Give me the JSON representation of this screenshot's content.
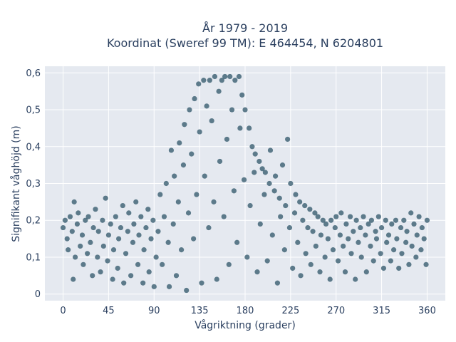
{
  "chart_data": {
    "type": "scatter",
    "title_lines": [
      "År 1979 - 2019",
      "Koordinat (Sweref 99 TM): E 464454, N 6204801"
    ],
    "xlabel": "Vågriktning (grader)",
    "ylabel": "Signifikant våghöjd (m)",
    "xlim": [
      -18,
      378
    ],
    "ylim": [
      -0.018,
      0.618
    ],
    "xticks": [
      0,
      45,
      90,
      135,
      180,
      225,
      270,
      315,
      360
    ],
    "xtick_labels": [
      "0",
      "45",
      "90",
      "135",
      "180",
      "225",
      "270",
      "315",
      "360"
    ],
    "yticks": [
      0,
      0.1,
      0.2,
      0.3,
      0.4,
      0.5,
      0.6
    ],
    "ytick_labels": [
      "0",
      "0,1",
      "0,2",
      "0,3",
      "0,4",
      "0,5",
      "0,6"
    ],
    "grid": true,
    "marker_color": "#2e5468",
    "background_color": "#e5e9f0",
    "series": [
      {
        "points": [
          [
            0,
            0.18
          ],
          [
            2,
            0.2
          ],
          [
            4,
            0.15
          ],
          [
            5,
            0.12
          ],
          [
            7,
            0.21
          ],
          [
            9,
            0.17
          ],
          [
            10,
            0.04
          ],
          [
            11,
            0.25
          ],
          [
            12,
            0.1
          ],
          [
            14,
            0.19
          ],
          [
            15,
            0.22
          ],
          [
            17,
            0.13
          ],
          [
            19,
            0.16
          ],
          [
            20,
            0.08
          ],
          [
            22,
            0.2
          ],
          [
            24,
            0.11
          ],
          [
            25,
            0.21
          ],
          [
            27,
            0.14
          ],
          [
            29,
            0.05
          ],
          [
            30,
            0.18
          ],
          [
            32,
            0.23
          ],
          [
            34,
            0.1
          ],
          [
            35,
            0.17
          ],
          [
            37,
            0.06
          ],
          [
            39,
            0.2
          ],
          [
            40,
            0.13
          ],
          [
            42,
            0.26
          ],
          [
            44,
            0.09
          ],
          [
            45,
            0.16
          ],
          [
            47,
            0.19
          ],
          [
            49,
            0.04
          ],
          [
            50,
            0.12
          ],
          [
            52,
            0.21
          ],
          [
            54,
            0.07
          ],
          [
            55,
            0.15
          ],
          [
            57,
            0.18
          ],
          [
            59,
            0.24
          ],
          [
            60,
            0.03
          ],
          [
            62,
            0.11
          ],
          [
            64,
            0.17
          ],
          [
            65,
            0.22
          ],
          [
            67,
            0.05
          ],
          [
            69,
            0.14
          ],
          [
            70,
            0.19
          ],
          [
            72,
            0.25
          ],
          [
            74,
            0.08
          ],
          [
            75,
            0.16
          ],
          [
            77,
            0.21
          ],
          [
            79,
            0.03
          ],
          [
            80,
            0.12
          ],
          [
            82,
            0.18
          ],
          [
            84,
            0.23
          ],
          [
            85,
            0.06
          ],
          [
            87,
            0.15
          ],
          [
            89,
            0.2
          ],
          [
            90,
            0.02
          ],
          [
            92,
            0.1
          ],
          [
            94,
            0.17
          ],
          [
            96,
            0.27
          ],
          [
            98,
            0.08
          ],
          [
            100,
            0.21
          ],
          [
            102,
            0.3
          ],
          [
            104,
            0.14
          ],
          [
            105,
            0.02
          ],
          [
            107,
            0.39
          ],
          [
            109,
            0.19
          ],
          [
            110,
            0.32
          ],
          [
            112,
            0.05
          ],
          [
            114,
            0.25
          ],
          [
            115,
            0.41
          ],
          [
            117,
            0.12
          ],
          [
            119,
            0.35
          ],
          [
            120,
            0.46
          ],
          [
            122,
            0.01
          ],
          [
            124,
            0.22
          ],
          [
            125,
            0.5
          ],
          [
            127,
            0.38
          ],
          [
            129,
            0.15
          ],
          [
            130,
            0.53
          ],
          [
            132,
            0.27
          ],
          [
            134,
            0.57
          ],
          [
            135,
            0.44
          ],
          [
            137,
            0.03
          ],
          [
            139,
            0.58
          ],
          [
            140,
            0.32
          ],
          [
            142,
            0.51
          ],
          [
            144,
            0.18
          ],
          [
            145,
            0.58
          ],
          [
            147,
            0.47
          ],
          [
            149,
            0.25
          ],
          [
            150,
            0.59
          ],
          [
            152,
            0.04
          ],
          [
            154,
            0.55
          ],
          [
            155,
            0.36
          ],
          [
            157,
            0.58
          ],
          [
            159,
            0.21
          ],
          [
            160,
            0.59
          ],
          [
            162,
            0.42
          ],
          [
            164,
            0.08
          ],
          [
            165,
            0.59
          ],
          [
            167,
            0.5
          ],
          [
            169,
            0.28
          ],
          [
            170,
            0.58
          ],
          [
            172,
            0.14
          ],
          [
            174,
            0.59
          ],
          [
            175,
            0.45
          ],
          [
            177,
            0.54
          ],
          [
            179,
            0.31
          ],
          [
            180,
            0.5
          ],
          [
            182,
            0.1
          ],
          [
            184,
            0.45
          ],
          [
            185,
            0.24
          ],
          [
            187,
            0.4
          ],
          [
            189,
            0.33
          ],
          [
            190,
            0.38
          ],
          [
            192,
            0.06
          ],
          [
            194,
            0.36
          ],
          [
            195,
            0.19
          ],
          [
            197,
            0.34
          ],
          [
            199,
            0.27
          ],
          [
            200,
            0.33
          ],
          [
            202,
            0.09
          ],
          [
            204,
            0.3
          ],
          [
            205,
            0.39
          ],
          [
            207,
            0.16
          ],
          [
            209,
            0.28
          ],
          [
            210,
            0.32
          ],
          [
            212,
            0.03
          ],
          [
            214,
            0.26
          ],
          [
            215,
            0.21
          ],
          [
            217,
            0.35
          ],
          [
            219,
            0.12
          ],
          [
            220,
            0.24
          ],
          [
            222,
            0.42
          ],
          [
            224,
            0.18
          ],
          [
            225,
            0.3
          ],
          [
            227,
            0.07
          ],
          [
            229,
            0.22
          ],
          [
            230,
            0.27
          ],
          [
            232,
            0.14
          ],
          [
            234,
            0.25
          ],
          [
            235,
            0.05
          ],
          [
            237,
            0.2
          ],
          [
            239,
            0.24
          ],
          [
            240,
            0.11
          ],
          [
            242,
            0.18
          ],
          [
            244,
            0.23
          ],
          [
            245,
            0.08
          ],
          [
            247,
            0.17
          ],
          [
            249,
            0.22
          ],
          [
            250,
            0.13
          ],
          [
            252,
            0.21
          ],
          [
            254,
            0.06
          ],
          [
            255,
            0.16
          ],
          [
            257,
            0.2
          ],
          [
            259,
            0.1
          ],
          [
            260,
            0.19
          ],
          [
            262,
            0.15
          ],
          [
            264,
            0.04
          ],
          [
            265,
            0.2
          ],
          [
            267,
            0.12
          ],
          [
            269,
            0.18
          ],
          [
            270,
            0.21
          ],
          [
            272,
            0.09
          ],
          [
            274,
            0.16
          ],
          [
            275,
            0.22
          ],
          [
            277,
            0.13
          ],
          [
            279,
            0.06
          ],
          [
            280,
            0.19
          ],
          [
            282,
            0.15
          ],
          [
            284,
            0.21
          ],
          [
            285,
            0.11
          ],
          [
            287,
            0.17
          ],
          [
            289,
            0.04
          ],
          [
            290,
            0.2
          ],
          [
            292,
            0.14
          ],
          [
            294,
            0.18
          ],
          [
            295,
            0.1
          ],
          [
            297,
            0.21
          ],
          [
            299,
            0.16
          ],
          [
            300,
            0.06
          ],
          [
            302,
            0.19
          ],
          [
            304,
            0.13
          ],
          [
            305,
            0.2
          ],
          [
            307,
            0.09
          ],
          [
            309,
            0.17
          ],
          [
            310,
            0.15
          ],
          [
            312,
            0.21
          ],
          [
            314,
            0.11
          ],
          [
            315,
            0.18
          ],
          [
            317,
            0.07
          ],
          [
            319,
            0.2
          ],
          [
            320,
            0.14
          ],
          [
            322,
            0.16
          ],
          [
            324,
            0.09
          ],
          [
            325,
            0.19
          ],
          [
            327,
            0.12
          ],
          [
            329,
            0.2
          ],
          [
            330,
            0.15
          ],
          [
            332,
            0.07
          ],
          [
            334,
            0.18
          ],
          [
            335,
            0.11
          ],
          [
            337,
            0.2
          ],
          [
            339,
            0.14
          ],
          [
            340,
            0.17
          ],
          [
            342,
            0.08
          ],
          [
            344,
            0.22
          ],
          [
            345,
            0.13
          ],
          [
            347,
            0.19
          ],
          [
            349,
            0.1
          ],
          [
            350,
            0.16
          ],
          [
            352,
            0.21
          ],
          [
            354,
            0.12
          ],
          [
            355,
            0.18
          ],
          [
            357,
            0.15
          ],
          [
            359,
            0.08
          ],
          [
            360,
            0.2
          ]
        ]
      }
    ]
  }
}
